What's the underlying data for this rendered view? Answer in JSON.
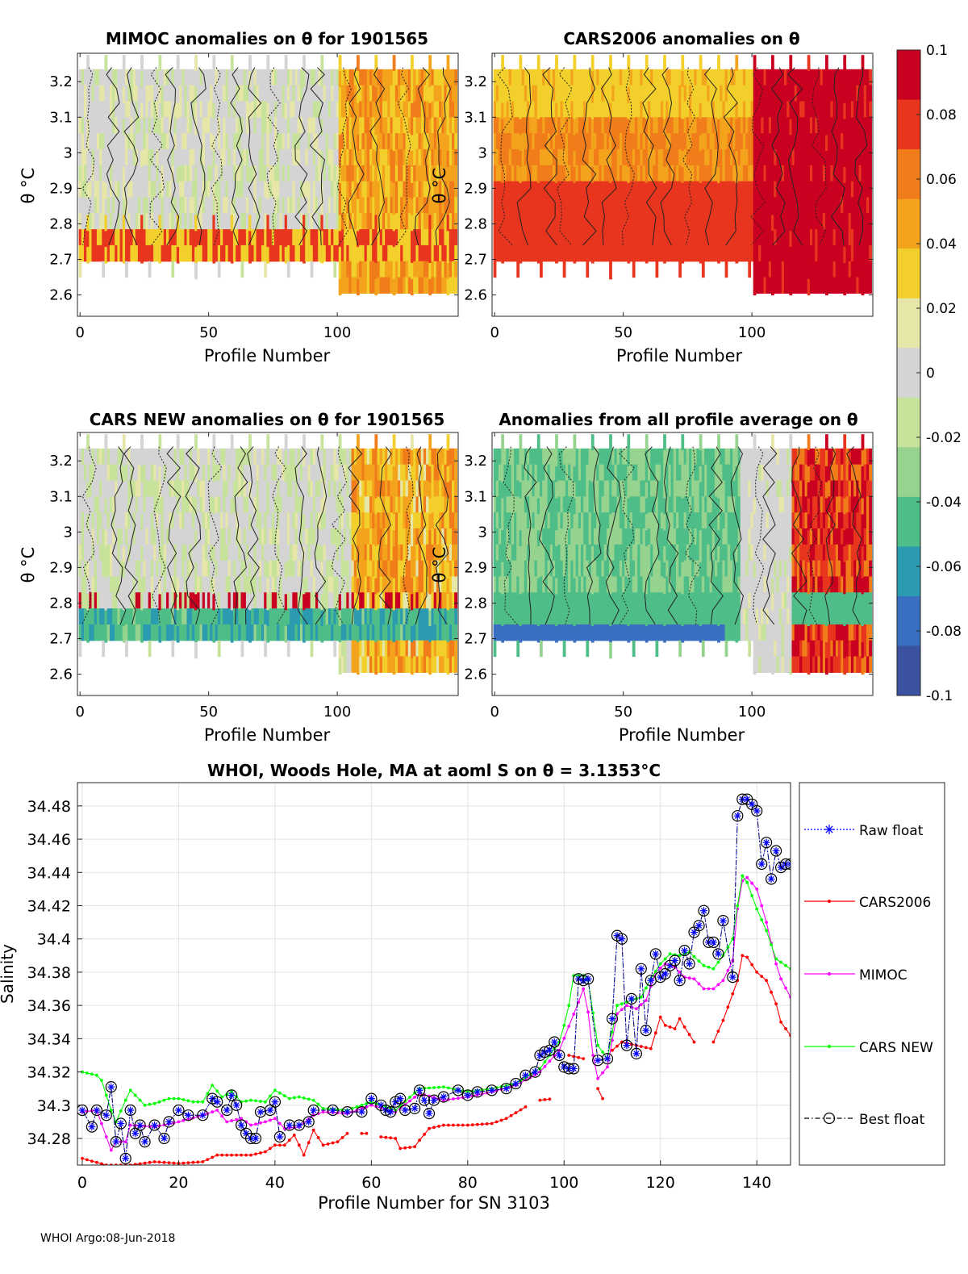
{
  "panels": [
    {
      "title": "MIMOC anomalies on θ  for 1901565",
      "xlabel": "Profile Number",
      "ylabel": "θ °C"
    },
    {
      "title": "CARS2006 anomalies on θ",
      "xlabel": "Profile Number",
      "ylabel": "θ °C"
    },
    {
      "title": "CARS NEW anomalies on θ for 1901565",
      "xlabel": "Profile Number",
      "ylabel": "θ °C"
    },
    {
      "title": "Anomalies from all profile average on θ",
      "xlabel": "Profile Number",
      "ylabel": "θ °C"
    }
  ],
  "heatmap_axes": {
    "xticks": [
      0,
      50,
      100
    ],
    "xlim": [
      -1,
      147
    ],
    "yticks": [
      3.2,
      3.1,
      3,
      2.9,
      2.8,
      2.7,
      2.6
    ],
    "ylim": [
      2.54,
      3.28
    ]
  },
  "colorbar": {
    "ticks": [
      "0.1",
      "0.08",
      "0.06",
      "0.04",
      "0.02",
      "0",
      "-0.02",
      "-0.04",
      "-0.06",
      "-0.08",
      "-0.1"
    ],
    "range": [
      -0.1,
      0.1
    ],
    "colors": [
      "#ca0020",
      "#e8351e",
      "#f07c1a",
      "#f4a31c",
      "#f2cf2a",
      "#e6e6a8",
      "#d4d4d4",
      "#c7e29a",
      "#96d38f",
      "#4fbd87",
      "#2b9bb0",
      "#3a6ec0",
      "#3a52a0"
    ]
  },
  "chart_data": {
    "type": "line",
    "title": "WHOI, Woods Hole, MA at aoml S on θ = 3.1353°C",
    "xlabel": "Profile Number for SN 3103",
    "ylabel": "Salinity",
    "xlim": [
      -1,
      147
    ],
    "ylim": [
      34.264,
      34.494
    ],
    "xticks": [
      0,
      20,
      40,
      60,
      80,
      100,
      120,
      140
    ],
    "yticks": [
      "34.48",
      "34.46",
      "34.44",
      "34.42",
      "34.4",
      "34.38",
      "34.36",
      "34.34",
      "34.32",
      "34.3",
      "34.28"
    ],
    "grid": true,
    "legend_position": "outside-right",
    "series": [
      {
        "name": "Raw float",
        "color": "#0000ff",
        "anchors": [
          [
            0,
            34.297
          ],
          [
            2,
            34.287
          ],
          [
            3,
            34.297
          ],
          [
            5,
            34.294
          ],
          [
            6,
            34.311
          ],
          [
            7,
            34.278
          ],
          [
            8,
            34.289
          ],
          [
            9,
            34.268
          ],
          [
            10,
            34.297
          ],
          [
            11,
            34.283
          ],
          [
            12,
            34.288
          ],
          [
            13,
            34.278
          ],
          [
            15,
            34.288
          ],
          [
            17,
            34.28
          ],
          [
            18,
            34.29
          ],
          [
            20,
            34.297
          ],
          [
            22,
            34.294
          ],
          [
            25,
            34.294
          ],
          [
            27,
            34.304
          ],
          [
            28,
            34.302
          ],
          [
            30,
            34.297
          ],
          [
            31,
            34.306
          ],
          [
            32,
            34.3
          ],
          [
            33,
            34.288
          ],
          [
            34,
            34.283
          ],
          [
            35,
            34.28
          ],
          [
            36,
            34.28
          ],
          [
            37,
            34.296
          ],
          [
            39,
            34.297
          ],
          [
            40,
            34.302
          ],
          [
            41,
            34.281
          ],
          [
            43,
            34.288
          ],
          [
            45,
            34.288
          ],
          [
            47,
            34.29
          ],
          [
            48,
            34.297
          ],
          [
            52,
            34.297
          ],
          [
            55,
            34.296
          ],
          [
            58,
            34.296
          ],
          [
            60,
            34.304
          ],
          [
            62,
            34.3
          ],
          [
            63,
            34.297
          ],
          [
            64,
            34.296
          ],
          [
            65,
            34.302
          ],
          [
            66,
            34.304
          ],
          [
            67,
            34.297
          ],
          [
            69,
            34.298
          ],
          [
            70,
            34.309
          ],
          [
            71,
            34.303
          ],
          [
            72,
            34.295
          ],
          [
            73,
            34.303
          ],
          [
            75,
            34.305
          ],
          [
            78,
            34.309
          ],
          [
            80,
            34.306
          ],
          [
            82,
            34.308
          ],
          [
            85,
            34.309
          ],
          [
            88,
            34.31
          ],
          [
            90,
            34.313
          ],
          [
            92,
            34.318
          ],
          [
            94,
            34.32
          ],
          [
            95,
            34.33
          ],
          [
            96,
            34.332
          ],
          [
            97,
            34.333
          ],
          [
            98,
            34.338
          ],
          [
            99,
            34.33
          ],
          [
            100,
            34.323
          ],
          [
            101,
            34.322
          ],
          [
            102,
            34.322
          ],
          [
            103,
            34.376
          ],
          [
            104,
            34.375
          ],
          [
            105,
            34.376
          ],
          [
            107,
            34.327
          ],
          [
            109,
            34.328
          ],
          [
            110,
            34.352
          ],
          [
            111,
            34.402
          ],
          [
            112,
            34.4
          ],
          [
            113,
            34.336
          ],
          [
            114,
            34.364
          ],
          [
            115,
            34.331
          ],
          [
            116,
            34.382
          ],
          [
            117,
            34.345
          ],
          [
            118,
            34.375
          ],
          [
            119,
            34.391
          ],
          [
            120,
            34.377
          ],
          [
            121,
            34.379
          ],
          [
            122,
            34.384
          ],
          [
            123,
            34.387
          ],
          [
            124,
            34.375
          ],
          [
            125,
            34.393
          ],
          [
            126,
            34.385
          ],
          [
            127,
            34.404
          ],
          [
            128,
            34.408
          ],
          [
            129,
            34.417
          ],
          [
            130,
            34.398
          ],
          [
            131,
            34.398
          ],
          [
            132,
            34.391
          ],
          [
            133,
            34.411
          ],
          [
            135,
            34.377
          ],
          [
            136,
            34.474
          ],
          [
            137,
            34.484
          ],
          [
            138,
            34.484
          ],
          [
            139,
            34.481
          ],
          [
            140,
            34.477
          ],
          [
            141,
            34.445
          ],
          [
            142,
            34.458
          ],
          [
            143,
            34.436
          ],
          [
            144,
            34.453
          ],
          [
            145,
            34.443
          ],
          [
            146,
            34.445
          ],
          [
            147,
            34.445
          ]
        ]
      },
      {
        "name": "CARS2006",
        "color": "#ff0000",
        "anchors": [
          [
            0,
            34.268
          ],
          [
            5,
            34.264
          ],
          [
            10,
            34.264
          ],
          [
            15,
            34.266
          ],
          [
            20,
            34.265
          ],
          [
            25,
            34.266
          ],
          [
            28,
            34.27
          ],
          [
            30,
            34.27
          ],
          [
            35,
            34.27
          ],
          [
            38,
            34.272
          ],
          [
            40,
            34.276
          ],
          [
            42,
            34.276
          ],
          [
            44,
            34.282
          ],
          [
            46,
            34.27
          ],
          [
            48,
            34.285
          ],
          [
            50,
            34.276
          ],
          [
            53,
            34.278
          ],
          [
            55,
            34.283
          ],
          [
            57,
            34.283
          ],
          [
            59,
            34.283
          ],
          [
            62,
            34.281
          ],
          [
            65,
            34.28
          ],
          [
            66,
            34.274
          ],
          [
            69,
            34.275
          ],
          [
            70,
            34.279
          ],
          [
            72,
            34.286
          ],
          [
            75,
            34.288
          ],
          [
            80,
            34.288
          ],
          [
            85,
            34.289
          ],
          [
            88,
            34.292
          ],
          [
            92,
            34.299
          ],
          [
            95,
            34.303
          ],
          [
            98,
            34.304
          ],
          [
            101,
            34.33
          ],
          [
            104,
            34.328
          ],
          [
            108,
            34.304
          ],
          [
            110,
            34.333
          ],
          [
            112,
            34.338
          ],
          [
            115,
            34.336
          ],
          [
            118,
            34.334
          ],
          [
            120,
            34.353
          ],
          [
            121,
            34.348
          ],
          [
            123,
            34.346
          ],
          [
            124,
            34.352
          ],
          [
            125,
            34.347
          ],
          [
            127,
            34.338
          ],
          [
            131,
            34.338
          ],
          [
            133,
            34.351
          ],
          [
            136,
            34.375
          ],
          [
            137,
            34.39
          ],
          [
            138,
            34.389
          ],
          [
            140,
            34.38
          ],
          [
            142,
            34.375
          ],
          [
            144,
            34.361
          ],
          [
            145,
            34.35
          ],
          [
            147,
            34.342
          ]
        ]
      },
      {
        "name": "MIMOC",
        "color": "#ff00ff",
        "anchors": [
          [
            0,
            34.296
          ],
          [
            3,
            34.297
          ],
          [
            6,
            34.273
          ],
          [
            7,
            34.278
          ],
          [
            9,
            34.278
          ],
          [
            10,
            34.288
          ],
          [
            15,
            34.287
          ],
          [
            20,
            34.29
          ],
          [
            25,
            34.294
          ],
          [
            28,
            34.297
          ],
          [
            30,
            34.29
          ],
          [
            33,
            34.292
          ],
          [
            35,
            34.288
          ],
          [
            38,
            34.29
          ],
          [
            40,
            34.292
          ],
          [
            42,
            34.286
          ],
          [
            45,
            34.287
          ],
          [
            48,
            34.294
          ],
          [
            50,
            34.296
          ],
          [
            55,
            34.295
          ],
          [
            60,
            34.3
          ],
          [
            65,
            34.296
          ],
          [
            70,
            34.307
          ],
          [
            75,
            34.303
          ],
          [
            80,
            34.305
          ],
          [
            85,
            34.308
          ],
          [
            90,
            34.312
          ],
          [
            95,
            34.32
          ],
          [
            99,
            34.333
          ],
          [
            103,
            34.362
          ],
          [
            104,
            34.37
          ],
          [
            105,
            34.356
          ],
          [
            106,
            34.33
          ],
          [
            107,
            34.316
          ],
          [
            109,
            34.323
          ],
          [
            111,
            34.355
          ],
          [
            113,
            34.36
          ],
          [
            115,
            34.358
          ],
          [
            117,
            34.363
          ],
          [
            119,
            34.38
          ],
          [
            121,
            34.385
          ],
          [
            123,
            34.383
          ],
          [
            125,
            34.377
          ],
          [
            127,
            34.376
          ],
          [
            129,
            34.37
          ],
          [
            131,
            34.37
          ],
          [
            133,
            34.375
          ],
          [
            135,
            34.387
          ],
          [
            136,
            34.418
          ],
          [
            137,
            34.435
          ],
          [
            138,
            34.437
          ],
          [
            140,
            34.43
          ],
          [
            142,
            34.41
          ],
          [
            144,
            34.385
          ],
          [
            145,
            34.376
          ],
          [
            147,
            34.365
          ]
        ]
      },
      {
        "name": "CARS NEW",
        "color": "#00ff00",
        "anchors": [
          [
            0,
            34.32
          ],
          [
            3,
            34.318
          ],
          [
            4,
            34.315
          ],
          [
            6,
            34.297
          ],
          [
            7,
            34.29
          ],
          [
            9,
            34.303
          ],
          [
            10,
            34.309
          ],
          [
            13,
            34.3
          ],
          [
            15,
            34.301
          ],
          [
            18,
            34.304
          ],
          [
            20,
            34.304
          ],
          [
            23,
            34.302
          ],
          [
            25,
            34.302
          ],
          [
            27,
            34.312
          ],
          [
            29,
            34.305
          ],
          [
            31,
            34.308
          ],
          [
            33,
            34.302
          ],
          [
            35,
            34.303
          ],
          [
            38,
            34.302
          ],
          [
            40,
            34.309
          ],
          [
            43,
            34.304
          ],
          [
            45,
            34.305
          ],
          [
            48,
            34.303
          ],
          [
            50,
            34.298
          ],
          [
            55,
            34.297
          ],
          [
            60,
            34.302
          ],
          [
            65,
            34.297
          ],
          [
            70,
            34.31
          ],
          [
            75,
            34.311
          ],
          [
            80,
            34.308
          ],
          [
            85,
            34.31
          ],
          [
            90,
            34.313
          ],
          [
            95,
            34.322
          ],
          [
            99,
            34.338
          ],
          [
            100,
            34.348
          ],
          [
            101,
            34.36
          ],
          [
            102,
            34.378
          ],
          [
            104,
            34.378
          ],
          [
            105,
            34.375
          ],
          [
            107,
            34.336
          ],
          [
            109,
            34.328
          ],
          [
            111,
            34.36
          ],
          [
            113,
            34.362
          ],
          [
            116,
            34.365
          ],
          [
            118,
            34.376
          ],
          [
            120,
            34.385
          ],
          [
            122,
            34.391
          ],
          [
            124,
            34.39
          ],
          [
            126,
            34.392
          ],
          [
            129,
            34.384
          ],
          [
            131,
            34.382
          ],
          [
            133,
            34.39
          ],
          [
            135,
            34.4
          ],
          [
            136,
            34.42
          ],
          [
            137,
            34.438
          ],
          [
            138,
            34.434
          ],
          [
            140,
            34.418
          ],
          [
            142,
            34.405
          ],
          [
            144,
            34.388
          ],
          [
            147,
            34.382
          ]
        ]
      },
      {
        "name": "Best float",
        "color": "#000000",
        "same_as": "Raw float"
      }
    ]
  },
  "footer": "WHOI Argo:08-Jun-2018"
}
